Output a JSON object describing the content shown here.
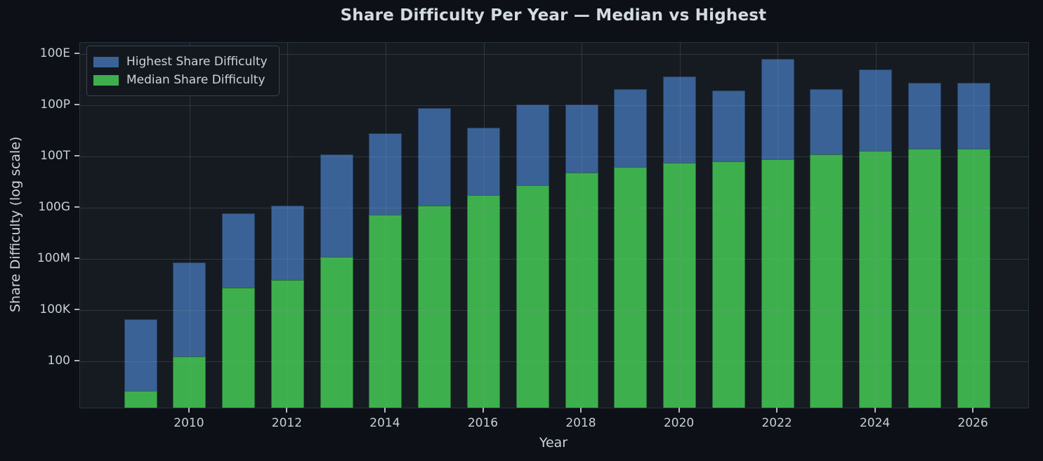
{
  "title": "Share Difficulty Per Year — Median vs Highest",
  "colors": {
    "background": "#0d1117",
    "plot_background": "#161b22",
    "frame": "#2b323d",
    "grid_rgba": "rgba(139,148,158,0.22)",
    "text": "#c9d1d9",
    "highest_series": "#3a6296",
    "median_series": "#3db04d"
  },
  "chart_data": {
    "type": "bar",
    "bar_mode": "overlay",
    "title": "Share Difficulty Per Year — Median vs Highest",
    "xlabel": "Year",
    "ylabel": "Share Difficulty (log scale)",
    "x": [
      2009,
      2010,
      2011,
      2012,
      2013,
      2014,
      2015,
      2016,
      2017,
      2018,
      2019,
      2020,
      2021,
      2022,
      2023,
      2024,
      2025,
      2026
    ],
    "series": [
      {
        "id": "highest",
        "name": "Highest Share Difficulty",
        "color": "#3a6296",
        "values": [
          30000.0,
          65000000.0,
          50000000000.0,
          140000000000.0,
          140000000000000.0,
          2300000000000000.0,
          7e+16,
          5000000000000000.0,
          1.1e+17,
          1.1e+17,
          9e+17,
          5e+18,
          7.5e+17,
          5e+19,
          9e+17,
          1.3e+19,
          2e+18,
          2e+18
        ]
      },
      {
        "id": "median",
        "name": "Median Share Difficulty",
        "color": "#3db04d",
        "values": [
          2,
          200.0,
          2100000.0,
          6000000.0,
          130000000.0,
          40000000000.0,
          140000000000.0,
          550000000000.0,
          2200000000000.0,
          12000000000000.0,
          25000000000000.0,
          43000000000000.0,
          52000000000000.0,
          70000000000000.0,
          140000000000000.0,
          210000000000000.0,
          300000000000000.0,
          300000000000000.0
        ]
      }
    ],
    "y_scale": "log",
    "y_range_log10": [
      -0.7,
      20.66
    ],
    "y_ticks": [
      {
        "value": 100.0,
        "label": "100"
      },
      {
        "value": 100000.0,
        "label": "100K"
      },
      {
        "value": 100000000.0,
        "label": "100M"
      },
      {
        "value": 100000000000.0,
        "label": "100G"
      },
      {
        "value": 100000000000000.0,
        "label": "100T"
      },
      {
        "value": 1e+17,
        "label": "100P"
      },
      {
        "value": 1e+20,
        "label": "100E"
      }
    ],
    "x_tick_labels": [
      "2010",
      "2012",
      "2014",
      "2016",
      "2018",
      "2020",
      "2022",
      "2024",
      "2026"
    ],
    "grid": true,
    "legend_position": "upper left"
  }
}
